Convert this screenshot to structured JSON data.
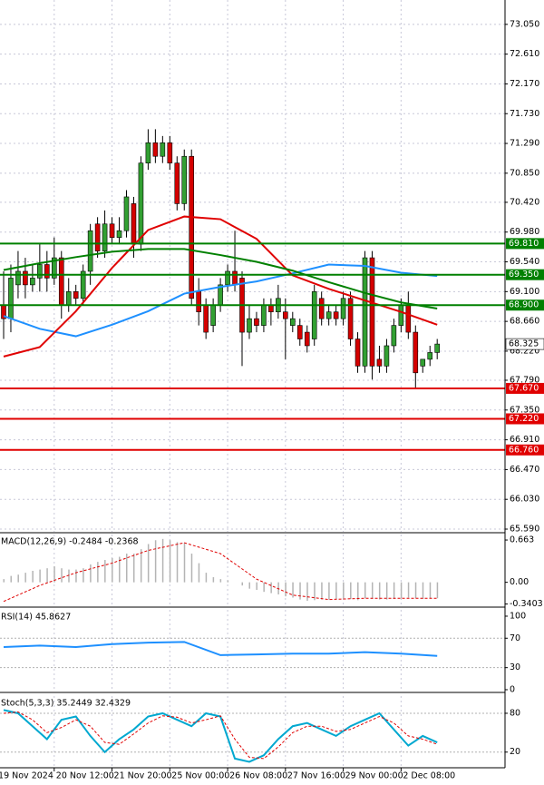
{
  "chart_data": [
    {
      "type": "candlestick",
      "candles": {
        "open": [
          68.9,
          68.7,
          69.2,
          69.4,
          69.2,
          69.3,
          69.5,
          69.3,
          69.6,
          68.9,
          69.1,
          69.0,
          69.4,
          70.1,
          69.7,
          70.1,
          69.9,
          70.0,
          70.4,
          69.8,
          71.0,
          71.3,
          71.1,
          71.3,
          71.0,
          70.4,
          71.1,
          69.1,
          68.9,
          68.6,
          68.9,
          69.2,
          69.4,
          69.3,
          68.5,
          68.7,
          68.6,
          68.9,
          68.8,
          68.8,
          68.6,
          68.6,
          68.5,
          68.4,
          69.0,
          68.7,
          68.8,
          68.7,
          69.0,
          68.4,
          68.0,
          69.6,
          68.1,
          68.0,
          68.3,
          68.6,
          68.9,
          68.5,
          68.0,
          68.1,
          68.2
        ],
        "high": [
          69.4,
          69.5,
          69.7,
          69.6,
          69.5,
          69.8,
          69.7,
          69.9,
          69.7,
          69.3,
          69.2,
          69.5,
          70.1,
          70.2,
          70.3,
          70.2,
          70.2,
          70.6,
          70.5,
          71.1,
          71.5,
          71.5,
          71.4,
          71.4,
          71.1,
          71.2,
          71.2,
          69.3,
          69.0,
          69.0,
          69.3,
          69.5,
          70.0,
          69.4,
          68.9,
          68.8,
          69.0,
          69.0,
          69.2,
          69.0,
          68.8,
          68.7,
          68.6,
          69.2,
          69.1,
          68.9,
          68.9,
          69.1,
          69.1,
          68.5,
          69.7,
          69.7,
          68.3,
          68.4,
          68.7,
          69.0,
          69.1,
          68.6,
          68.1,
          68.3,
          68.4
        ],
        "low": [
          68.4,
          68.5,
          69.0,
          69.0,
          69.1,
          69.1,
          69.1,
          69.2,
          68.7,
          68.8,
          68.9,
          68.9,
          69.2,
          69.6,
          69.6,
          69.8,
          69.8,
          69.9,
          69.6,
          69.7,
          70.9,
          71.0,
          71.0,
          70.9,
          70.3,
          70.3,
          68.9,
          68.6,
          68.4,
          68.5,
          68.8,
          69.1,
          69.1,
          68.0,
          68.4,
          68.5,
          68.5,
          68.6,
          68.7,
          68.1,
          68.5,
          68.3,
          68.2,
          68.3,
          68.6,
          68.6,
          68.6,
          68.6,
          68.3,
          67.9,
          67.9,
          67.8,
          67.9,
          67.9,
          68.2,
          68.5,
          68.4,
          67.67,
          67.9,
          68.0,
          68.1
        ],
        "close": [
          68.7,
          69.3,
          69.4,
          69.2,
          69.3,
          69.5,
          69.3,
          69.6,
          68.9,
          69.1,
          69.0,
          69.4,
          70.0,
          69.7,
          70.1,
          69.9,
          70.0,
          70.5,
          69.8,
          71.0,
          71.3,
          71.1,
          71.3,
          71.0,
          70.4,
          71.1,
          69.0,
          68.8,
          68.5,
          68.9,
          69.2,
          69.4,
          69.2,
          68.5,
          68.7,
          68.6,
          68.9,
          68.8,
          69.0,
          68.7,
          68.7,
          68.4,
          68.3,
          69.1,
          68.7,
          68.8,
          68.7,
          69.0,
          68.4,
          68.0,
          69.6,
          68.0,
          68.0,
          68.3,
          68.6,
          68.9,
          68.5,
          67.9,
          68.1,
          68.2,
          68.325
        ]
      },
      "up_color": "#32a032",
      "down_color": "#d40000",
      "series": [
        {
          "color": "#1e90ff",
          "x": [
            0,
            5,
            10,
            15,
            20,
            25,
            30,
            35,
            40,
            45,
            50,
            55,
            60
          ],
          "values": [
            68.74,
            68.55,
            68.44,
            68.61,
            68.81,
            69.07,
            69.17,
            69.25,
            69.37,
            69.5,
            69.48,
            69.38,
            69.33
          ]
        },
        {
          "color": "#e00000",
          "x": [
            0,
            5,
            10,
            15,
            20,
            25,
            30,
            35,
            40,
            45,
            50,
            55,
            60
          ],
          "values": [
            68.14,
            68.28,
            68.81,
            69.45,
            70.01,
            70.21,
            70.17,
            69.88,
            69.34,
            69.14,
            68.97,
            68.8,
            68.61
          ]
        },
        {
          "color": "#008000",
          "x": [
            0,
            5,
            10,
            15,
            20,
            25,
            30,
            35,
            40,
            45,
            50,
            55,
            60
          ],
          "values": [
            69.42,
            69.52,
            69.61,
            69.69,
            69.73,
            69.73,
            69.64,
            69.54,
            69.41,
            69.24,
            69.08,
            68.94,
            68.85
          ]
        }
      ],
      "levels": [
        {
          "value": 69.81,
          "label": "69.810",
          "color": "#008000"
        },
        {
          "value": 69.35,
          "label": "69.350",
          "color": "#008000"
        },
        {
          "value": 68.9,
          "label": "68.900",
          "color": "#008000"
        },
        {
          "value": 67.67,
          "label": "67.670",
          "color": "#e00000"
        },
        {
          "value": 67.22,
          "label": "67.220",
          "color": "#e00000"
        },
        {
          "value": 66.76,
          "label": "66.760",
          "color": "#e00000"
        }
      ],
      "current_price": {
        "value": 68.325,
        "label": "68.325"
      },
      "ylim": [
        65.55,
        73.41
      ],
      "yticks": [
        {
          "value": 73.05,
          "label": "73.050"
        },
        {
          "value": 72.61,
          "label": "72.610"
        },
        {
          "value": 72.17,
          "label": "72.170"
        },
        {
          "value": 71.73,
          "label": "71.730"
        },
        {
          "value": 71.29,
          "label": "71.290"
        },
        {
          "value": 70.85,
          "label": "70.850"
        },
        {
          "value": 70.42,
          "label": "70.420"
        },
        {
          "value": 69.98,
          "label": "69.980"
        },
        {
          "value": 69.54,
          "label": "69.540"
        },
        {
          "value": 69.1,
          "label": "69.100"
        },
        {
          "value": 68.66,
          "label": "68.660"
        },
        {
          "value": 68.22,
          "label": "68.220"
        },
        {
          "value": 67.79,
          "label": "67.790"
        },
        {
          "value": 67.35,
          "label": "67.350"
        },
        {
          "value": 66.91,
          "label": "66.910"
        },
        {
          "value": 66.47,
          "label": "66.470"
        },
        {
          "value": 66.03,
          "label": "66.030"
        },
        {
          "value": 65.59,
          "label": "65.590"
        }
      ],
      "xticks": [
        {
          "value": -1,
          "label": "19 Nov 2024"
        },
        {
          "value": 7,
          "label": "20 Nov 12:00"
        },
        {
          "value": 15,
          "label": "21 Nov 20:00"
        },
        {
          "value": 23,
          "label": "25 Nov 00:00"
        },
        {
          "value": 31,
          "label": "26 Nov 08:00"
        },
        {
          "value": 39,
          "label": "27 Nov 16:00"
        },
        {
          "value": 47,
          "label": "29 Nov 00:00"
        },
        {
          "value": 55,
          "label": "2 Dec 08:00"
        }
      ],
      "grid": true
    },
    {
      "type": "macd",
      "title": "MACD(12,26,9) -0.2484 -0.2368",
      "values": [
        0.05,
        0.1,
        0.12,
        0.15,
        0.18,
        0.2,
        0.22,
        0.25,
        0.22,
        0.2,
        0.2,
        0.22,
        0.28,
        0.32,
        0.35,
        0.38,
        0.4,
        0.45,
        0.45,
        0.52,
        0.6,
        0.66,
        0.68,
        0.66,
        0.63,
        0.62,
        0.45,
        0.3,
        0.15,
        0.08,
        0.05,
        0.03,
        0.0,
        -0.05,
        -0.1,
        -0.12,
        -0.15,
        -0.17,
        -0.19,
        -0.22,
        -0.24,
        -0.27,
        -0.29,
        -0.28,
        -0.27,
        -0.27,
        -0.26,
        -0.25,
        -0.26,
        -0.28,
        -0.25,
        -0.26,
        -0.27,
        -0.27,
        -0.26,
        -0.25,
        -0.24,
        -0.25,
        -0.26,
        -0.25,
        -0.25
      ],
      "color": "#b4b4b4",
      "series": [
        {
          "color": "#e00000",
          "dash": true,
          "x": [
            0,
            5,
            10,
            15,
            20,
            25,
            30,
            35,
            40,
            45,
            50,
            55,
            60
          ],
          "values": [
            -0.3,
            -0.05,
            0.15,
            0.3,
            0.5,
            0.62,
            0.45,
            0.05,
            -0.2,
            -0.27,
            -0.25,
            -0.25,
            -0.25
          ]
        }
      ],
      "ylim": [
        -0.375,
        0.749
      ],
      "yticks": [
        {
          "value": 0.663,
          "label": "0.663"
        },
        {
          "value": 0,
          "label": "0.00"
        },
        {
          "value": -0.3403,
          "label": "-0.3403"
        }
      ]
    },
    {
      "type": "line",
      "title": "RSI(14) 45.8627",
      "series": [
        {
          "color": "#1e90ff",
          "x": [
            0,
            5,
            10,
            15,
            20,
            25,
            30,
            35,
            40,
            45,
            50,
            55,
            60
          ],
          "values": [
            58,
            60,
            58,
            62,
            64,
            65,
            47,
            48,
            49,
            49,
            51,
            49,
            46
          ]
        }
      ],
      "ylim": [
        -2.5,
        108.6
      ],
      "yticks": [
        100,
        70,
        30,
        0
      ],
      "levels": [
        70,
        30
      ]
    },
    {
      "type": "line",
      "title": "Stoch(5,3,3) 35.2449 32.4329",
      "series": [
        {
          "color": "#00a8d0",
          "x": [
            0,
            2,
            4,
            6,
            8,
            10,
            12,
            14,
            16,
            18,
            20,
            22,
            24,
            26,
            28,
            30,
            32,
            34,
            36,
            38,
            40,
            42,
            44,
            46,
            48,
            50,
            52,
            54,
            56,
            58,
            60
          ],
          "values": [
            85,
            80,
            60,
            40,
            70,
            75,
            45,
            20,
            40,
            55,
            75,
            80,
            70,
            60,
            80,
            75,
            10,
            5,
            15,
            40,
            60,
            65,
            55,
            45,
            60,
            70,
            80,
            55,
            30,
            45,
            35
          ]
        },
        {
          "color": "#e00000",
          "dash": true,
          "x": [
            0,
            2,
            4,
            6,
            8,
            10,
            12,
            14,
            16,
            18,
            20,
            22,
            24,
            26,
            28,
            30,
            32,
            34,
            36,
            38,
            40,
            42,
            44,
            46,
            48,
            50,
            52,
            54,
            56,
            58,
            60
          ],
          "values": [
            80,
            82,
            70,
            50,
            58,
            70,
            60,
            35,
            32,
            48,
            65,
            76,
            74,
            65,
            70,
            76,
            40,
            12,
            10,
            28,
            50,
            60,
            60,
            52,
            55,
            65,
            75,
            65,
            45,
            40,
            32
          ]
        }
      ],
      "ylim": [
        -2.8,
        106.6
      ],
      "yticks": [
        80,
        20
      ],
      "levels": [
        80,
        20
      ]
    }
  ]
}
